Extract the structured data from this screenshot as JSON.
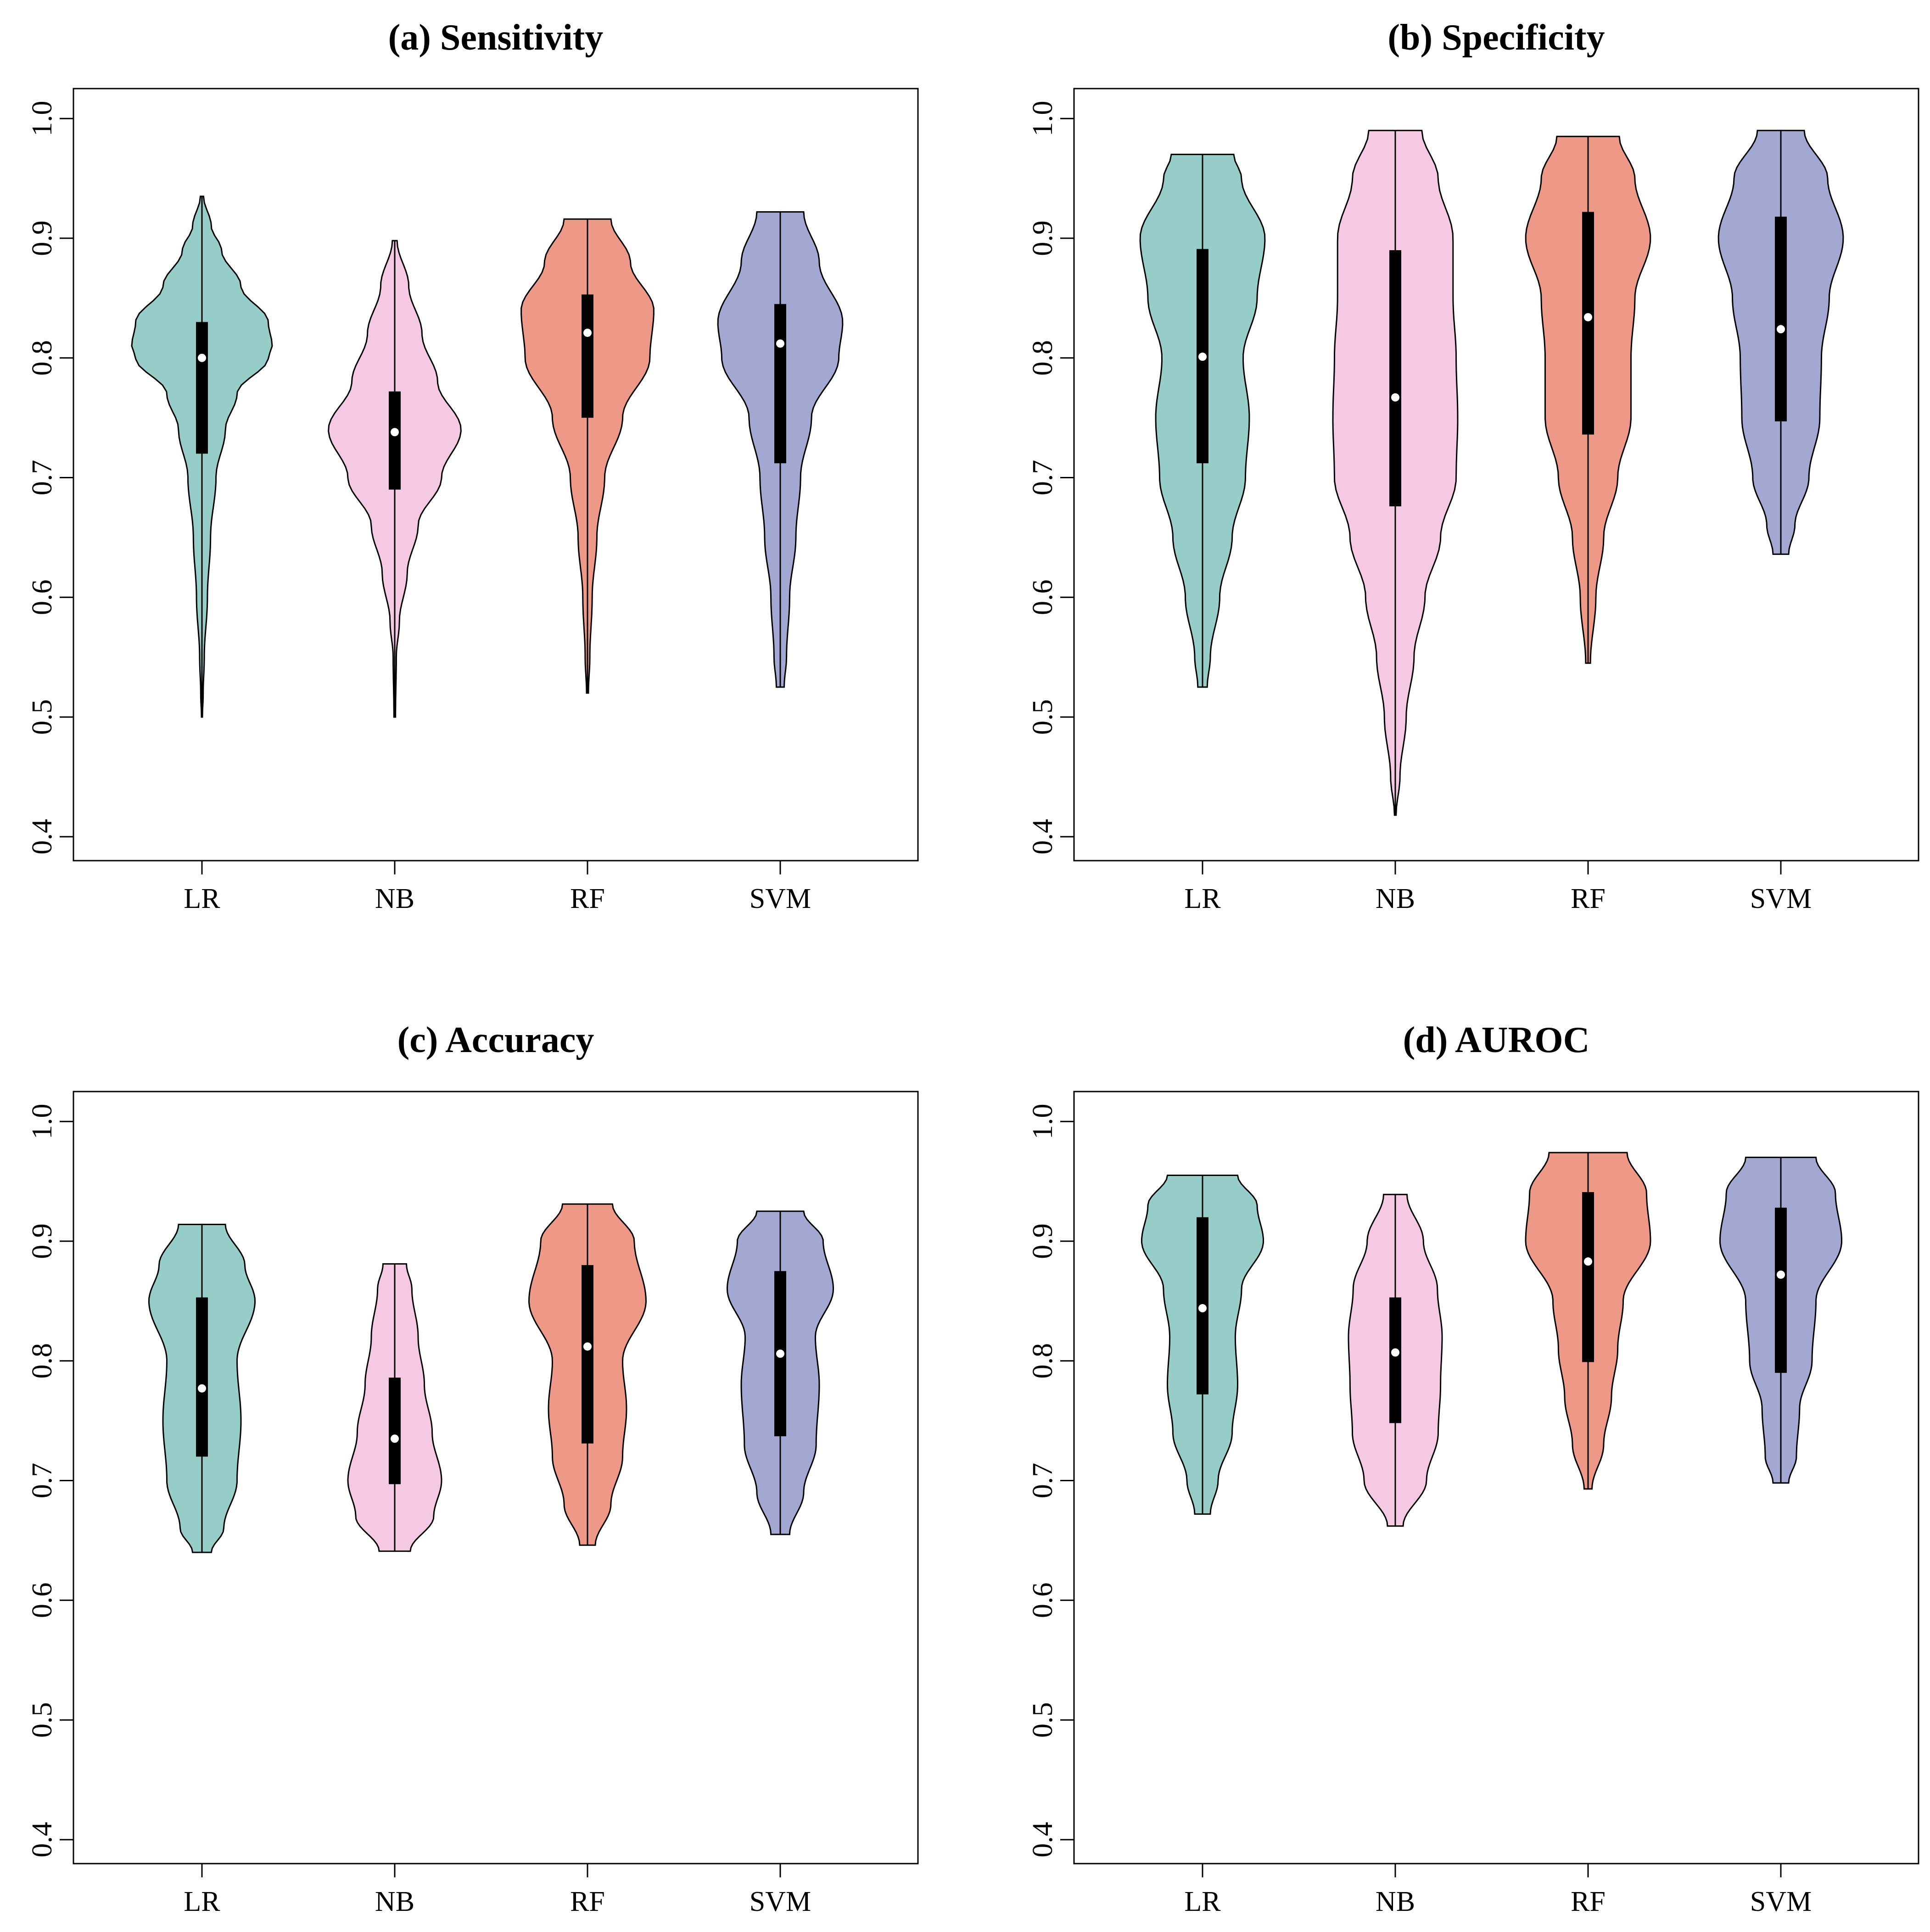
{
  "figure": {
    "colors": {
      "LR": "#96CDC9",
      "NB": "#F5C9E4",
      "RF": "#EE9988",
      "SVM": "#A2A8D2"
    }
  },
  "chart_data": [
    {
      "type": "violin",
      "title": "(a) Sensitivity",
      "categories": [
        "LR",
        "NB",
        "RF",
        "SVM"
      ],
      "yticks": [
        "0.4",
        "0.5",
        "0.6",
        "0.7",
        "0.8",
        "0.9",
        "1.0"
      ],
      "ylim": [
        0.38,
        1.025
      ],
      "series": [
        {
          "name": "LR",
          "min": 0.5,
          "q1": 0.72,
          "median": 0.8,
          "q3": 0.83,
          "max": 0.935,
          "profile": [
            [
              0.5,
              0.006
            ],
            [
              0.52,
              0.016
            ],
            [
              0.55,
              0.03
            ],
            [
              0.6,
              0.07
            ],
            [
              0.65,
              0.11
            ],
            [
              0.7,
              0.18
            ],
            [
              0.74,
              0.3
            ],
            [
              0.77,
              0.45
            ],
            [
              0.8,
              0.85
            ],
            [
              0.81,
              0.9
            ],
            [
              0.83,
              0.85
            ],
            [
              0.86,
              0.5
            ],
            [
              0.89,
              0.25
            ],
            [
              0.91,
              0.12
            ],
            [
              0.935,
              0.02
            ]
          ]
        },
        {
          "name": "NB",
          "min": 0.5,
          "q1": 0.69,
          "median": 0.738,
          "q3": 0.772,
          "max": 0.898,
          "profile": [
            [
              0.5,
              0.01
            ],
            [
              0.55,
              0.02
            ],
            [
              0.58,
              0.06
            ],
            [
              0.62,
              0.16
            ],
            [
              0.66,
              0.3
            ],
            [
              0.7,
              0.6
            ],
            [
              0.74,
              0.85
            ],
            [
              0.78,
              0.55
            ],
            [
              0.82,
              0.35
            ],
            [
              0.86,
              0.18
            ],
            [
              0.898,
              0.03
            ]
          ]
        },
        {
          "name": "RF",
          "min": 0.52,
          "q1": 0.75,
          "median": 0.821,
          "q3": 0.853,
          "max": 0.916,
          "profile": [
            [
              0.52,
              0.012
            ],
            [
              0.55,
              0.03
            ],
            [
              0.6,
              0.06
            ],
            [
              0.65,
              0.12
            ],
            [
              0.7,
              0.22
            ],
            [
              0.75,
              0.45
            ],
            [
              0.8,
              0.8
            ],
            [
              0.84,
              0.85
            ],
            [
              0.88,
              0.55
            ],
            [
              0.916,
              0.3
            ]
          ]
        },
        {
          "name": "SVM",
          "min": 0.525,
          "q1": 0.712,
          "median": 0.812,
          "q3": 0.845,
          "max": 0.922,
          "profile": [
            [
              0.525,
              0.05
            ],
            [
              0.55,
              0.08
            ],
            [
              0.6,
              0.12
            ],
            [
              0.65,
              0.2
            ],
            [
              0.7,
              0.26
            ],
            [
              0.75,
              0.4
            ],
            [
              0.8,
              0.75
            ],
            [
              0.83,
              0.8
            ],
            [
              0.88,
              0.5
            ],
            [
              0.922,
              0.3
            ]
          ]
        }
      ]
    },
    {
      "type": "violin",
      "title": "(b) Specificity",
      "categories": [
        "LR",
        "NB",
        "RF",
        "SVM"
      ],
      "yticks": [
        "0.4",
        "0.5",
        "0.6",
        "0.7",
        "0.8",
        "0.9",
        "1.0"
      ],
      "ylim": [
        0.38,
        1.025
      ],
      "series": [
        {
          "name": "LR",
          "min": 0.525,
          "q1": 0.712,
          "median": 0.801,
          "q3": 0.891,
          "max": 0.97,
          "profile": [
            [
              0.525,
              0.06
            ],
            [
              0.55,
              0.1
            ],
            [
              0.6,
              0.22
            ],
            [
              0.65,
              0.38
            ],
            [
              0.7,
              0.55
            ],
            [
              0.75,
              0.6
            ],
            [
              0.8,
              0.52
            ],
            [
              0.85,
              0.7
            ],
            [
              0.9,
              0.8
            ],
            [
              0.95,
              0.5
            ],
            [
              0.97,
              0.4
            ]
          ]
        },
        {
          "name": "NB",
          "min": 0.418,
          "q1": 0.676,
          "median": 0.767,
          "q3": 0.89,
          "max": 0.99,
          "profile": [
            [
              0.418,
              0.01
            ],
            [
              0.45,
              0.06
            ],
            [
              0.5,
              0.14
            ],
            [
              0.55,
              0.24
            ],
            [
              0.6,
              0.38
            ],
            [
              0.65,
              0.58
            ],
            [
              0.7,
              0.78
            ],
            [
              0.75,
              0.8
            ],
            [
              0.8,
              0.78
            ],
            [
              0.85,
              0.74
            ],
            [
              0.9,
              0.74
            ],
            [
              0.95,
              0.55
            ],
            [
              0.99,
              0.34
            ]
          ]
        },
        {
          "name": "RF",
          "min": 0.545,
          "q1": 0.736,
          "median": 0.834,
          "q3": 0.922,
          "max": 0.985,
          "profile": [
            [
              0.545,
              0.03
            ],
            [
              0.6,
              0.1
            ],
            [
              0.65,
              0.2
            ],
            [
              0.7,
              0.38
            ],
            [
              0.75,
              0.55
            ],
            [
              0.8,
              0.55
            ],
            [
              0.85,
              0.6
            ],
            [
              0.9,
              0.8
            ],
            [
              0.95,
              0.6
            ],
            [
              0.985,
              0.4
            ]
          ]
        },
        {
          "name": "SVM",
          "min": 0.636,
          "q1": 0.747,
          "median": 0.824,
          "q3": 0.918,
          "max": 0.99,
          "profile": [
            [
              0.636,
              0.1
            ],
            [
              0.66,
              0.18
            ],
            [
              0.7,
              0.36
            ],
            [
              0.75,
              0.5
            ],
            [
              0.8,
              0.52
            ],
            [
              0.85,
              0.62
            ],
            [
              0.9,
              0.8
            ],
            [
              0.95,
              0.6
            ],
            [
              0.99,
              0.3
            ]
          ]
        }
      ]
    },
    {
      "type": "violin",
      "title": "(c) Accuracy",
      "categories": [
        "LR",
        "NB",
        "RF",
        "SVM"
      ],
      "yticks": [
        "0.4",
        "0.5",
        "0.6",
        "0.7",
        "0.8",
        "0.9",
        "1.0"
      ],
      "ylim": [
        0.38,
        1.025
      ],
      "series": [
        {
          "name": "LR",
          "min": 0.64,
          "q1": 0.72,
          "median": 0.777,
          "q3": 0.853,
          "max": 0.914,
          "profile": [
            [
              0.64,
              0.12
            ],
            [
              0.66,
              0.28
            ],
            [
              0.7,
              0.45
            ],
            [
              0.75,
              0.5
            ],
            [
              0.8,
              0.45
            ],
            [
              0.85,
              0.68
            ],
            [
              0.88,
              0.55
            ],
            [
              0.914,
              0.3
            ]
          ]
        },
        {
          "name": "NB",
          "min": 0.641,
          "q1": 0.697,
          "median": 0.735,
          "q3": 0.786,
          "max": 0.881,
          "profile": [
            [
              0.641,
              0.2
            ],
            [
              0.67,
              0.5
            ],
            [
              0.7,
              0.6
            ],
            [
              0.74,
              0.48
            ],
            [
              0.78,
              0.38
            ],
            [
              0.82,
              0.3
            ],
            [
              0.86,
              0.22
            ],
            [
              0.881,
              0.15
            ]
          ]
        },
        {
          "name": "RF",
          "min": 0.646,
          "q1": 0.731,
          "median": 0.812,
          "q3": 0.88,
          "max": 0.931,
          "profile": [
            [
              0.646,
              0.1
            ],
            [
              0.68,
              0.3
            ],
            [
              0.72,
              0.45
            ],
            [
              0.76,
              0.5
            ],
            [
              0.8,
              0.45
            ],
            [
              0.85,
              0.75
            ],
            [
              0.9,
              0.6
            ],
            [
              0.931,
              0.32
            ]
          ]
        },
        {
          "name": "SVM",
          "min": 0.655,
          "q1": 0.737,
          "median": 0.806,
          "q3": 0.875,
          "max": 0.925,
          "profile": [
            [
              0.655,
              0.12
            ],
            [
              0.69,
              0.3
            ],
            [
              0.73,
              0.46
            ],
            [
              0.78,
              0.5
            ],
            [
              0.82,
              0.45
            ],
            [
              0.86,
              0.68
            ],
            [
              0.9,
              0.55
            ],
            [
              0.925,
              0.3
            ]
          ]
        }
      ]
    },
    {
      "type": "violin",
      "title": "(d) AUROC",
      "categories": [
        "LR",
        "NB",
        "RF",
        "SVM"
      ],
      "yticks": [
        "0.4",
        "0.5",
        "0.6",
        "0.7",
        "0.8",
        "0.9",
        "1.0"
      ],
      "ylim": [
        0.38,
        1.025
      ],
      "series": [
        {
          "name": "LR",
          "min": 0.672,
          "q1": 0.772,
          "median": 0.844,
          "q3": 0.92,
          "max": 0.955,
          "profile": [
            [
              0.672,
              0.1
            ],
            [
              0.7,
              0.2
            ],
            [
              0.74,
              0.38
            ],
            [
              0.78,
              0.45
            ],
            [
              0.82,
              0.42
            ],
            [
              0.86,
              0.5
            ],
            [
              0.9,
              0.78
            ],
            [
              0.93,
              0.7
            ],
            [
              0.955,
              0.45
            ]
          ]
        },
        {
          "name": "NB",
          "min": 0.662,
          "q1": 0.748,
          "median": 0.807,
          "q3": 0.853,
          "max": 0.939,
          "profile": [
            [
              0.662,
              0.1
            ],
            [
              0.7,
              0.4
            ],
            [
              0.74,
              0.55
            ],
            [
              0.78,
              0.58
            ],
            [
              0.82,
              0.6
            ],
            [
              0.86,
              0.54
            ],
            [
              0.9,
              0.36
            ],
            [
              0.939,
              0.15
            ]
          ]
        },
        {
          "name": "RF",
          "min": 0.693,
          "q1": 0.799,
          "median": 0.883,
          "q3": 0.941,
          "max": 0.974,
          "profile": [
            [
              0.693,
              0.05
            ],
            [
              0.73,
              0.2
            ],
            [
              0.77,
              0.3
            ],
            [
              0.81,
              0.38
            ],
            [
              0.85,
              0.45
            ],
            [
              0.9,
              0.8
            ],
            [
              0.94,
              0.75
            ],
            [
              0.974,
              0.5
            ]
          ]
        },
        {
          "name": "SVM",
          "min": 0.698,
          "q1": 0.79,
          "median": 0.872,
          "q3": 0.928,
          "max": 0.97,
          "profile": [
            [
              0.698,
              0.1
            ],
            [
              0.72,
              0.2
            ],
            [
              0.76,
              0.24
            ],
            [
              0.8,
              0.4
            ],
            [
              0.85,
              0.45
            ],
            [
              0.9,
              0.78
            ],
            [
              0.94,
              0.7
            ],
            [
              0.97,
              0.45
            ]
          ]
        }
      ]
    }
  ]
}
